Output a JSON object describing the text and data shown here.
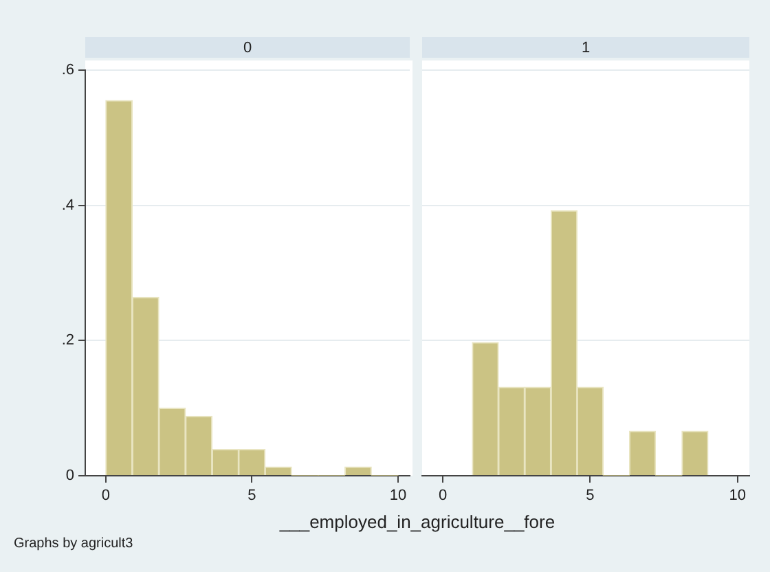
{
  "chart_data": [
    {
      "type": "histogram",
      "title": "0",
      "xlabel": "___employed_in_agriculture__fore",
      "annotations": [
        "Graphs by agricult3"
      ],
      "bins": [
        0,
        0.91,
        1.82,
        2.73,
        3.64,
        4.55,
        5.45,
        6.36,
        7.27,
        8.18,
        9.09,
        10
      ],
      "values": [
        0.555,
        0.264,
        0.1,
        0.088,
        0.039,
        0.039,
        0.013,
        0,
        0,
        0.013,
        0
      ],
      "color": "#cbc384",
      "xlim": [
        -0.7,
        10.4
      ],
      "xticks": [
        0,
        5,
        10
      ],
      "ylim": [
        0,
        0.6
      ],
      "yticks": [
        0,
        {
          "value": 0.2,
          "label": ".2"
        },
        {
          "value": 0.4,
          "label": ".4"
        },
        {
          "value": 0.6,
          "label": ".6"
        }
      ],
      "grid": "y"
    },
    {
      "type": "histogram",
      "title": "1",
      "bins": [
        1,
        1.89,
        2.78,
        3.67,
        4.56,
        5.44,
        6.33,
        7.22,
        8.11,
        9
      ],
      "values": [
        0.197,
        0.131,
        0.131,
        0.392,
        0.131,
        0,
        0.066,
        0,
        0.066
      ],
      "color": "#cbc384",
      "xlim": [
        -0.7,
        10.4
      ],
      "xticks": [
        0,
        5,
        10
      ],
      "ylim": [
        0,
        0.6
      ],
      "yticks": [
        0,
        0.2,
        0.4,
        0.6
      ],
      "grid": "y",
      "tick_labels": "x"
    }
  ]
}
